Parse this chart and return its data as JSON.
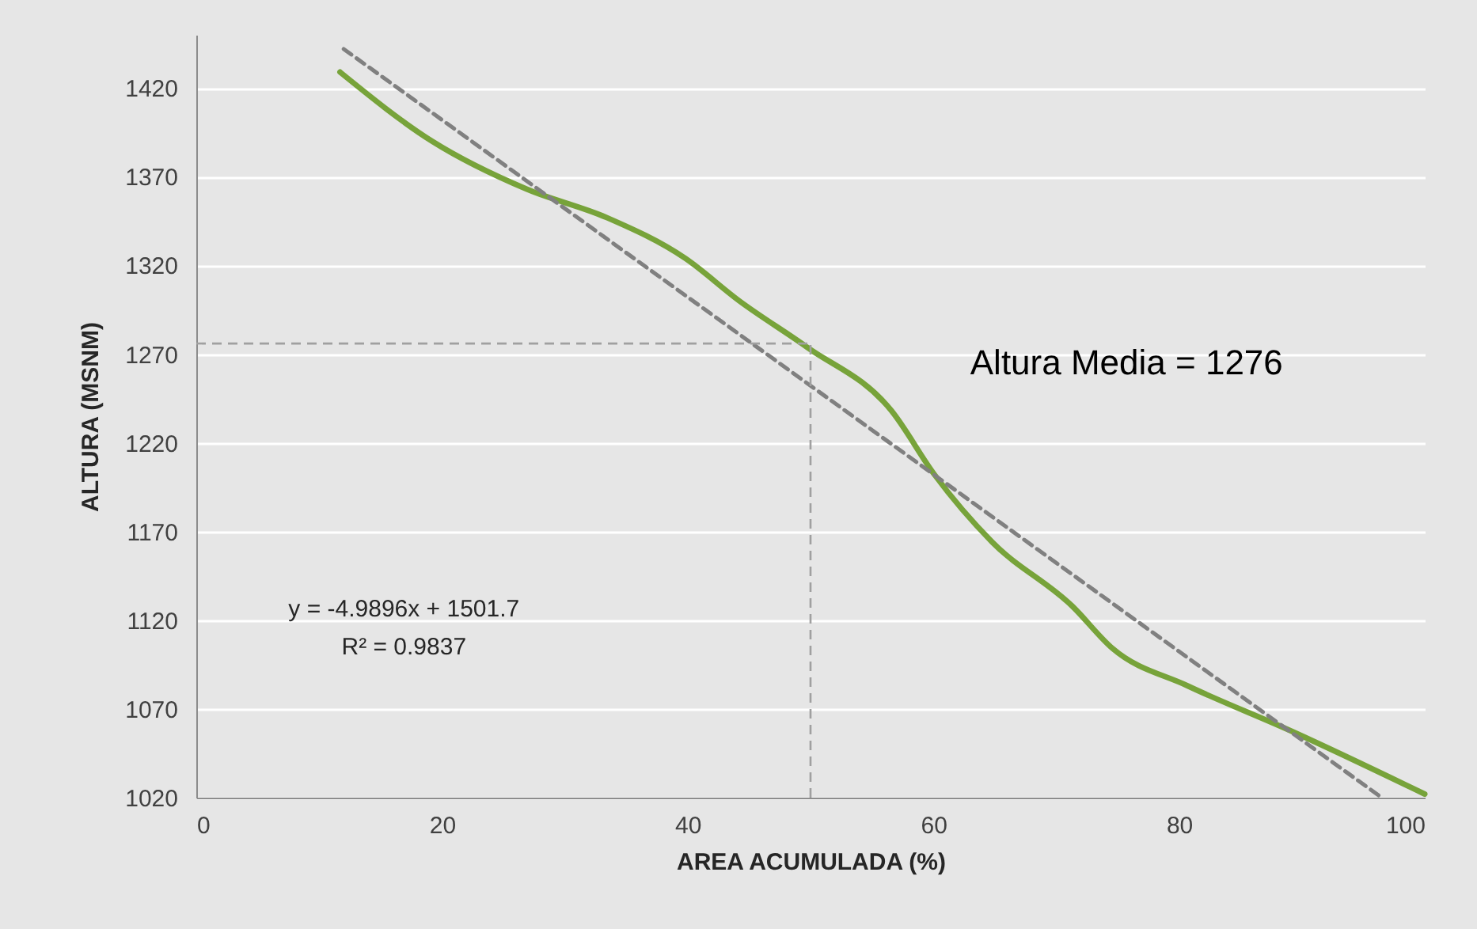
{
  "chart_data": {
    "type": "line",
    "xlabel": "AREA ACUMULADA (%)",
    "ylabel": "ALTURA (MSNM)",
    "xlim": [
      0,
      100
    ],
    "xticks": [
      0,
      20,
      40,
      60,
      80,
      100
    ],
    "ylim": [
      1020,
      1450
    ],
    "yticks": [
      1020,
      1070,
      1120,
      1170,
      1220,
      1270,
      1320,
      1370,
      1420
    ],
    "grid": "y",
    "marker": "none",
    "line_style": "solid",
    "series": [
      {
        "color": "#77a33a",
        "x": [
          11.7,
          19.2,
          26.9,
          33.4,
          39.8,
          44.2,
          49.7,
          56.6,
          60.1,
          64.8,
          71.3,
          74.6,
          80.7,
          89.3,
          100
        ],
        "values": [
          1429,
          1390,
          1363,
          1347,
          1324,
          1300,
          1274,
          1238,
          1202,
          1164,
          1128,
          1104,
          1083,
          1057,
          1022
        ]
      },
      {
        "type": "line",
        "line_style": "dashed",
        "color": "#808080",
        "x": [
          12,
          96.5
        ],
        "values": [
          1442,
          1020
        ]
      }
    ],
    "ref_lines": [
      {
        "axis": "y",
        "value": 1276,
        "color": "#a0a0a0",
        "line_style": "dashed"
      },
      {
        "axis": "x",
        "value": 50,
        "color": "#a0a0a0",
        "line_style": "dashed"
      }
    ],
    "annotations": [
      "Altura Media = 1276",
      "y = -4.9896x + 1501.7",
      "R² = 0.9837"
    ]
  }
}
